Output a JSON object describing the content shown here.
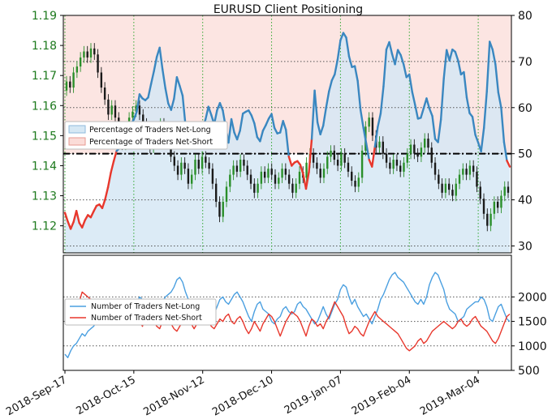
{
  "colors": {
    "net_long": "#3a87c0",
    "net_short": "#e8372c",
    "net_long_fill": "#d6e8f4",
    "net_short_fill": "#fbdcd8",
    "candle_up": "#2a8f2a",
    "candle_down": "#1a1a1a",
    "price_axis": "#1e7a1e",
    "grid_vertical": "#33a833",
    "grid_horizontal": "#555555",
    "reference_line": "#000000"
  },
  "chart_data": [
    {
      "type": "line",
      "title": "EURUSD Client Positioning",
      "x_tick_labels": [
        "2018-Sep-17",
        "2018-Oct-15",
        "2018-Nov-12",
        "2018-Dec-10",
        "2019-Jan-07",
        "2019-Feb-04",
        "2019-Mar-04"
      ],
      "price_axis": {
        "side": "left",
        "ticks": [
          "1.12",
          "1.13",
          "1.14",
          "1.15",
          "1.16",
          "1.17",
          "1.18",
          "1.19"
        ],
        "range": [
          1.111,
          1.19
        ]
      },
      "percent_axis": {
        "side": "right",
        "ticks": [
          "30",
          "40",
          "50",
          "60",
          "70",
          "80"
        ],
        "range": [
          28.5,
          80
        ]
      },
      "reference_line": 50,
      "legend": {
        "position": "center-left",
        "entries": [
          "Percentage of Traders Net-Long",
          "Percentage of Traders Net-Short"
        ]
      },
      "candles": [
        [
          1.165,
          1.168
        ],
        [
          1.168,
          1.166
        ],
        [
          1.166,
          1.171
        ],
        [
          1.171,
          1.173
        ],
        [
          1.173,
          1.176
        ],
        [
          1.176,
          1.178
        ],
        [
          1.178,
          1.176
        ],
        [
          1.176,
          1.179
        ],
        [
          1.179,
          1.177
        ],
        [
          1.177,
          1.171
        ],
        [
          1.171,
          1.166
        ],
        [
          1.166,
          1.162
        ],
        [
          1.162,
          1.157
        ],
        [
          1.157,
          1.16
        ],
        [
          1.16,
          1.156
        ],
        [
          1.156,
          1.152
        ],
        [
          1.152,
          1.147
        ],
        [
          1.147,
          1.151
        ],
        [
          1.151,
          1.156
        ],
        [
          1.156,
          1.158
        ],
        [
          1.158,
          1.16
        ],
        [
          1.16,
          1.157
        ],
        [
          1.157,
          1.154
        ],
        [
          1.154,
          1.149
        ],
        [
          1.149,
          1.146
        ],
        [
          1.146,
          1.149
        ],
        [
          1.149,
          1.151
        ],
        [
          1.151,
          1.154
        ],
        [
          1.154,
          1.152
        ],
        [
          1.152,
          1.148
        ],
        [
          1.148,
          1.143
        ],
        [
          1.143,
          1.14
        ],
        [
          1.14,
          1.137
        ],
        [
          1.137,
          1.141
        ],
        [
          1.141,
          1.139
        ],
        [
          1.139,
          1.134
        ],
        [
          1.134,
          1.137
        ],
        [
          1.137,
          1.142
        ],
        [
          1.142,
          1.139
        ],
        [
          1.139,
          1.143
        ],
        [
          1.143,
          1.141
        ],
        [
          1.141,
          1.139
        ],
        [
          1.139,
          1.134
        ],
        [
          1.134,
          1.128
        ],
        [
          1.128,
          1.123
        ],
        [
          1.123,
          1.128
        ],
        [
          1.128,
          1.133
        ],
        [
          1.133,
          1.137
        ],
        [
          1.137,
          1.14
        ],
        [
          1.14,
          1.138
        ],
        [
          1.138,
          1.142
        ],
        [
          1.142,
          1.14
        ],
        [
          1.14,
          1.137
        ],
        [
          1.137,
          1.134
        ],
        [
          1.134,
          1.131
        ],
        [
          1.131,
          1.134
        ],
        [
          1.134,
          1.138
        ],
        [
          1.138,
          1.136
        ],
        [
          1.136,
          1.139
        ],
        [
          1.139,
          1.137
        ],
        [
          1.137,
          1.134
        ],
        [
          1.134,
          1.136
        ],
        [
          1.136,
          1.139
        ],
        [
          1.139,
          1.137
        ],
        [
          1.137,
          1.134
        ],
        [
          1.134,
          1.131
        ],
        [
          1.131,
          1.134
        ],
        [
          1.134,
          1.138
        ],
        [
          1.138,
          1.136
        ],
        [
          1.136,
          1.141
        ],
        [
          1.141,
          1.144
        ],
        [
          1.144,
          1.141
        ],
        [
          1.141,
          1.139
        ],
        [
          1.139,
          1.136
        ],
        [
          1.136,
          1.139
        ],
        [
          1.139,
          1.143
        ],
        [
          1.143,
          1.145
        ],
        [
          1.145,
          1.142
        ],
        [
          1.142,
          1.14
        ],
        [
          1.14,
          1.144
        ],
        [
          1.144,
          1.141
        ],
        [
          1.141,
          1.138
        ],
        [
          1.138,
          1.135
        ],
        [
          1.135,
          1.133
        ],
        [
          1.133,
          1.136
        ],
        [
          1.136,
          1.145
        ],
        [
          1.145,
          1.153
        ],
        [
          1.153,
          1.156
        ],
        [
          1.156,
          1.15
        ],
        [
          1.15,
          1.146
        ],
        [
          1.146,
          1.148
        ],
        [
          1.148,
          1.144
        ],
        [
          1.144,
          1.141
        ],
        [
          1.141,
          1.139
        ],
        [
          1.139,
          1.142
        ],
        [
          1.142,
          1.14
        ],
        [
          1.14,
          1.138
        ],
        [
          1.138,
          1.141
        ],
        [
          1.141,
          1.144
        ],
        [
          1.144,
          1.147
        ],
        [
          1.147,
          1.144
        ],
        [
          1.144,
          1.143
        ],
        [
          1.143,
          1.146
        ],
        [
          1.146,
          1.149
        ],
        [
          1.149,
          1.146
        ],
        [
          1.146,
          1.141
        ],
        [
          1.141,
          1.137
        ],
        [
          1.137,
          1.134
        ],
        [
          1.134,
          1.131
        ],
        [
          1.131,
          1.134
        ],
        [
          1.134,
          1.132
        ],
        [
          1.132,
          1.13
        ],
        [
          1.13,
          1.134
        ],
        [
          1.134,
          1.137
        ],
        [
          1.137,
          1.139
        ],
        [
          1.139,
          1.137
        ],
        [
          1.137,
          1.14
        ],
        [
          1.14,
          1.138
        ],
        [
          1.138,
          1.133
        ],
        [
          1.133,
          1.129
        ],
        [
          1.129,
          1.124
        ],
        [
          1.124,
          1.12
        ],
        [
          1.12,
          1.124
        ],
        [
          1.124,
          1.128
        ],
        [
          1.128,
          1.126
        ],
        [
          1.126,
          1.13
        ],
        [
          1.13,
          1.133
        ],
        [
          1.133,
          1.131
        ]
      ],
      "series": [
        {
          "name": "Percentage of Traders Net-Long",
          "values": [
            37.2,
            35.3,
            33.7,
            35.2,
            37.6,
            35.0,
            34.0,
            35.6,
            36.7,
            36.2,
            37.5,
            38.7,
            39.0,
            38.2,
            40.1,
            42.7,
            45.9,
            48.4,
            50.6,
            51.2,
            52.7,
            51.3,
            54.3,
            56.5,
            57.4,
            59.1,
            62.9,
            62.0,
            61.6,
            62.2,
            65.1,
            67.9,
            71.0,
            73.0,
            68.3,
            64.2,
            60.9,
            59.5,
            61.9,
            66.6,
            64.7,
            62.6,
            56.2,
            54.2,
            52.8,
            53.0,
            53.4,
            54.0,
            55.5,
            57.5,
            60.2,
            58.4,
            56.4,
            59.4,
            61.0,
            59.4,
            55.8,
            52.4,
            57.5,
            54.6,
            53.1,
            55.0,
            58.7,
            59.1,
            59.4,
            58.3,
            56.6,
            53.6,
            52.7,
            55.0,
            56.2,
            57.6,
            58.6,
            55.6,
            54.4,
            54.6,
            57.1,
            55.2,
            49.4,
            47.4,
            48.1,
            48.4,
            47.6,
            45.6,
            42.4,
            46.0,
            53.2,
            63.7,
            56.8,
            54.2,
            56.1,
            60.0,
            63.5,
            65.9,
            67.2,
            70.4,
            74.6,
            76.2,
            75.2,
            71.1,
            68.8,
            69.0,
            65.8,
            59.5,
            55.6,
            52.2,
            48.7,
            47.2,
            51.5,
            55.8,
            58.7,
            64.6,
            72.6,
            74.2,
            71.6,
            69.4,
            72.5,
            71.4,
            69.4,
            66.6,
            67.2,
            63.4,
            60.6,
            57.6,
            57.8,
            59.9,
            62.0,
            59.8,
            58.2,
            53.2,
            52.5,
            57.4,
            66.3,
            72.5,
            70.2,
            72.6,
            72.1,
            70.2,
            67.2,
            67.7,
            62.2,
            58.8,
            58.0,
            54.1,
            52.4,
            50.5,
            55.6,
            63.5,
            74.3,
            72.6,
            69.4,
            63.3,
            60.0,
            52.5,
            48.5,
            47.2
          ]
        },
        {
          "name": "Number of Traders Net-Long",
          "x_index": 1,
          "values": [
            830,
            760,
            900,
            1000,
            1050,
            1150,
            1250,
            1200,
            1300,
            1350,
            1400,
            1500,
            1600,
            1700,
            1650,
            1550,
            1600,
            1700,
            1750,
            1800,
            1650,
            1750,
            1850,
            1900,
            1950,
            1850,
            2000,
            1950,
            1850,
            1800,
            1750,
            1800,
            1750,
            1850,
            1900,
            2000,
            2050,
            2100,
            2200,
            2350,
            2400,
            2300,
            2100,
            1950,
            1850,
            1750,
            1650,
            1700,
            1800,
            1850,
            1900,
            1750,
            1650,
            1800,
            1950,
            2000,
            1900,
            1850,
            1950,
            2050,
            2100,
            2000,
            1900,
            1750,
            1600,
            1500,
            1700,
            1850,
            1900,
            1750,
            1700,
            1650,
            1500,
            1450,
            1550,
            1600,
            1750,
            1800,
            1700,
            1650,
            1700,
            1850,
            1900,
            1800,
            1750,
            1650,
            1550,
            1450,
            1500,
            1650,
            1800,
            1650,
            1550,
            1700,
            1850,
            1950,
            2150,
            2250,
            2200,
            2000,
            1850,
            1950,
            1800,
            1700,
            1600,
            1650,
            1550,
            1450,
            1600,
            1750,
            1950,
            2050,
            2200,
            2350,
            2450,
            2500,
            2400,
            2350,
            2300,
            2200,
            2100,
            2000,
            1900,
            1850,
            1950,
            1850,
            2000,
            2250,
            2400,
            2500,
            2450,
            2300,
            2150,
            1900,
            1750,
            1700,
            1650,
            1500,
            1550,
            1600,
            1750,
            1800,
            1850,
            1900,
            1900,
            2000,
            1950,
            1800,
            1550,
            1500,
            1650,
            1800,
            1850,
            1700,
            1550,
            1500
          ]
        },
        {
          "name": "Number of Traders Net-Short",
          "x_index": 1,
          "values": [
            1700,
            1650,
            1750,
            1800,
            1850,
            1900,
            2100,
            2050,
            2000,
            1950,
            1850,
            1800,
            1750,
            1700,
            1650,
            1650,
            1550,
            1600,
            1700,
            1600,
            1550,
            1500,
            1450,
            1600,
            1700,
            1650,
            1500,
            1400,
            1550,
            1650,
            1600,
            1500,
            1400,
            1350,
            1500,
            1600,
            1500,
            1450,
            1350,
            1300,
            1400,
            1500,
            1600,
            1550,
            1450,
            1350,
            1450,
            1550,
            1500,
            1600,
            1500,
            1400,
            1350,
            1450,
            1550,
            1500,
            1600,
            1650,
            1500,
            1450,
            1550,
            1600,
            1500,
            1350,
            1250,
            1350,
            1500,
            1400,
            1300,
            1450,
            1550,
            1650,
            1600,
            1500,
            1350,
            1200,
            1350,
            1500,
            1600,
            1700,
            1650,
            1600,
            1500,
            1350,
            1200,
            1400,
            1550,
            1500,
            1400,
            1450,
            1350,
            1500,
            1600,
            1750,
            1900,
            1800,
            1700,
            1600,
            1400,
            1250,
            1300,
            1400,
            1350,
            1250,
            1200,
            1350,
            1500,
            1600,
            1700,
            1600,
            1550,
            1500,
            1450,
            1400,
            1350,
            1300,
            1250,
            1150,
            1050,
            950,
            900,
            950,
            1000,
            1100,
            1150,
            1050,
            1100,
            1200,
            1300,
            1350,
            1400,
            1450,
            1500,
            1450,
            1400,
            1350,
            1400,
            1500,
            1550,
            1450,
            1400,
            1450,
            1550,
            1600,
            1500,
            1400,
            1350,
            1300,
            1200,
            1100,
            1050,
            1150,
            1300,
            1450,
            1600,
            1650
          ]
        }
      ]
    },
    {
      "type": "line",
      "count_axis": {
        "side": "right",
        "ticks": [
          "500",
          "1000",
          "1500",
          "2000"
        ],
        "range": [
          500,
          2850
        ]
      },
      "legend": {
        "position": "center-left",
        "entries": [
          "Number of Traders Net-Long",
          "Number of Traders Net-Short"
        ]
      }
    }
  ]
}
